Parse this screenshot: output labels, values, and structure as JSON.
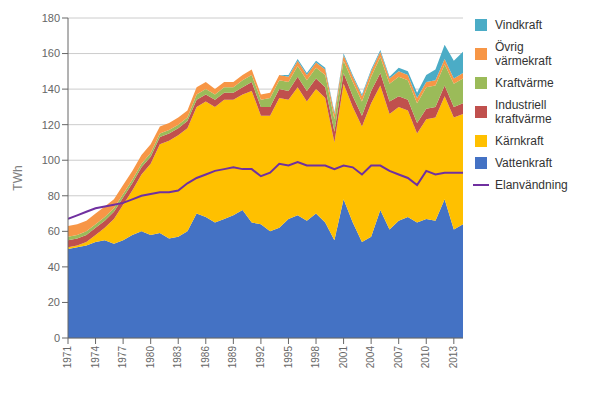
{
  "chart_data": {
    "type": "area",
    "stacked": true,
    "grid": true,
    "legend": "right",
    "y_label": "TWh",
    "x": [
      1971,
      1972,
      1973,
      1974,
      1975,
      1976,
      1977,
      1978,
      1979,
      1980,
      1981,
      1982,
      1983,
      1984,
      1985,
      1986,
      1987,
      1988,
      1989,
      1990,
      1991,
      1992,
      1993,
      1994,
      1995,
      1996,
      1997,
      1998,
      1999,
      2000,
      2001,
      2002,
      2003,
      2004,
      2005,
      2006,
      2007,
      2008,
      2009,
      2010,
      2011,
      2012,
      2013,
      2014
    ],
    "xlim": [
      1971,
      2014
    ],
    "xticks": [
      1971,
      1974,
      1977,
      1980,
      1983,
      1986,
      1989,
      1992,
      1995,
      1998,
      2001,
      2004,
      2007,
      2010,
      2013
    ],
    "ylim": [
      0,
      180
    ],
    "yticks": [
      0,
      20,
      40,
      60,
      80,
      100,
      120,
      140,
      160,
      180
    ],
    "series": [
      {
        "name": "Vattenkraft",
        "color": "#4472C4",
        "values": [
          50,
          51,
          52,
          54,
          55,
          53,
          55,
          58,
          60,
          58,
          59,
          56,
          57,
          60,
          70,
          68,
          65,
          67,
          69,
          72,
          65,
          64,
          60,
          62,
          67,
          69,
          66,
          70,
          65,
          55,
          78,
          65,
          54,
          57,
          72,
          61,
          66,
          68,
          65,
          67,
          66,
          78,
          61,
          64
        ]
      },
      {
        "name": "Kärnkraft",
        "color": "#FFC000",
        "values": [
          1,
          1,
          2,
          4,
          7,
          14,
          20,
          25,
          32,
          40,
          50,
          55,
          57,
          58,
          60,
          65,
          65,
          67,
          65,
          65,
          74,
          61,
          65,
          73,
          67,
          72,
          67,
          70,
          70,
          55,
          65,
          65,
          65,
          75,
          70,
          65,
          64,
          60,
          50,
          56,
          58,
          58,
          63,
          62
        ]
      },
      {
        "name": "Industriell\nkraftvärme",
        "color": "#C0504D",
        "values": [
          4,
          4,
          4,
          4,
          4,
          4,
          4,
          4,
          4,
          4,
          4,
          4,
          4,
          4,
          4,
          4,
          4,
          4,
          4,
          4,
          5,
          5,
          5,
          5,
          5,
          6,
          6,
          6,
          6,
          6,
          6,
          6,
          6,
          7,
          7,
          7,
          6,
          6,
          6,
          6,
          6,
          6,
          6,
          6
        ]
      },
      {
        "name": "Kraftvärme",
        "color": "#9BBB59",
        "values": [
          2,
          2,
          2,
          2,
          2,
          2,
          2,
          2,
          2,
          2,
          2,
          2,
          2,
          2,
          3,
          3,
          3,
          3,
          3,
          4,
          4,
          4,
          5,
          5,
          5,
          6,
          6,
          6,
          7,
          7,
          7,
          8,
          8,
          8,
          9,
          10,
          11,
          11,
          11,
          12,
          12,
          12,
          13,
          14
        ]
      },
      {
        "name": "Övrig\nvärmekraft",
        "color": "#F79646",
        "values": [
          6,
          6,
          6,
          6,
          6,
          5,
          5,
          5,
          5,
          5,
          4,
          4,
          4,
          4,
          4,
          4,
          3,
          3,
          3,
          3,
          3,
          3,
          3,
          3,
          3,
          3,
          3,
          3,
          3,
          3,
          3,
          3,
          3,
          3,
          3,
          3,
          3,
          3,
          3,
          3,
          3,
          3,
          3,
          3
        ]
      },
      {
        "name": "Vindkraft",
        "color": "#4BACC6",
        "values": [
          0,
          0,
          0,
          0,
          0,
          0,
          0,
          0,
          0,
          0,
          0,
          0,
          0,
          0,
          0,
          0,
          0,
          0,
          0,
          0,
          0,
          0,
          0,
          0,
          1,
          1,
          1,
          1,
          1,
          1,
          1,
          1,
          1,
          1,
          1,
          1,
          2,
          2,
          3,
          4,
          6,
          8,
          10,
          12
        ]
      },
      {
        "name": "Elanvändning",
        "color": "#7030A0",
        "type": "line",
        "values": [
          67,
          69,
          71,
          73,
          74,
          75,
          76,
          78,
          80,
          81,
          82,
          82,
          83,
          87,
          90,
          92,
          94,
          95,
          96,
          95,
          95,
          91,
          93,
          98,
          97,
          99,
          97,
          97,
          97,
          95,
          97,
          96,
          92,
          97,
          97,
          94,
          92,
          90,
          86,
          94,
          92,
          93,
          93,
          93
        ]
      }
    ]
  }
}
